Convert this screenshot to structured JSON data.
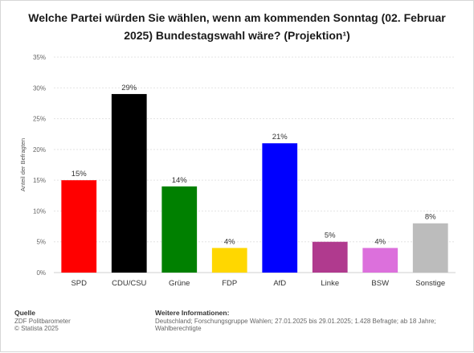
{
  "title": "Welche Partei würden Sie wählen, wenn am kommenden Sonntag (02. Februar 2025) Bundestagswahl wäre? (Projektion¹)",
  "footer": {
    "source_heading": "Quelle",
    "source_lines": [
      "ZDF Politbarometer",
      "© Statista 2025"
    ],
    "info_heading": "Weitere Informationen:",
    "info_text": "Deutschland; Forschungsgruppe Wahlen; 27.01.2025 bis 29.01.2025; 1.428 Befragte; ab 18 Jahre; Wahlberechtigte"
  },
  "chart_data": {
    "type": "bar",
    "title": "Welche Partei würden Sie wählen, wenn am kommenden Sonntag (02. Februar 2025) Bundestagswahl wäre? (Projektion¹)",
    "xlabel": "",
    "ylabel": "Anteil der Befragten",
    "ylim": [
      0,
      35
    ],
    "yticks": [
      0,
      5,
      10,
      15,
      20,
      25,
      30,
      35
    ],
    "ytick_labels": [
      "0%",
      "5%",
      "10%",
      "15%",
      "20%",
      "25%",
      "30%",
      "35%"
    ],
    "grid": true,
    "categories": [
      "SPD",
      "CDU/CSU",
      "Grüne",
      "FDP",
      "AfD",
      "Linke",
      "BSW",
      "Sonstige"
    ],
    "values": [
      15,
      29,
      14,
      4,
      21,
      5,
      4,
      8
    ],
    "value_labels": [
      "15%",
      "29%",
      "14%",
      "4%",
      "21%",
      "5%",
      "4%",
      "8%"
    ],
    "colors": [
      "#ff0000",
      "#000000",
      "#008000",
      "#ffd700",
      "#0000ff",
      "#b03a8e",
      "#dc70dc",
      "#bcbcbc"
    ]
  }
}
